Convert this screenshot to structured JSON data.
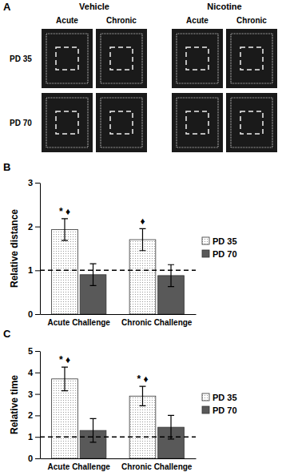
{
  "panel_a": {
    "label": "A",
    "groups": [
      "Vehicle",
      "Nicotine"
    ],
    "columns": [
      "Acute",
      "Chronic",
      "Acute",
      "Chronic"
    ],
    "rows": [
      "PD 35",
      "PD 70"
    ]
  },
  "chart_data": [
    {
      "type": "bar",
      "title": "B",
      "y_label": "Relative distance",
      "categories": [
        "Acute Challenge",
        "Chronic Challenge"
      ],
      "series": [
        {
          "name": "PD 35",
          "color": "#e8e8e8",
          "values": [
            1.93,
            1.7
          ],
          "errors": [
            0.25,
            0.25
          ],
          "annotations": [
            "* ♦",
            "♦"
          ]
        },
        {
          "name": "PD 70",
          "color": "#595959",
          "values": [
            0.9,
            0.88
          ],
          "errors": [
            0.25,
            0.25
          ]
        }
      ],
      "ylim": [
        0,
        3
      ],
      "yticks": [
        0,
        1,
        2,
        3
      ],
      "reference_line": 1,
      "legend": "right"
    },
    {
      "type": "bar",
      "title": "C",
      "y_label": "Relative time",
      "categories": [
        "Acute Challenge",
        "Chronic Challenge"
      ],
      "series": [
        {
          "name": "PD 35",
          "color": "#e8e8e8",
          "values": [
            3.7,
            2.9
          ],
          "errors": [
            0.55,
            0.45
          ],
          "annotations": [
            "* ♦",
            "* ♦"
          ]
        },
        {
          "name": "PD 70",
          "color": "#595959",
          "values": [
            1.3,
            1.45
          ],
          "errors": [
            0.55,
            0.55
          ]
        }
      ],
      "ylim": [
        0,
        5
      ],
      "yticks": [
        0,
        1,
        2,
        3,
        4,
        5
      ],
      "reference_line": 1,
      "legend": "right"
    }
  ]
}
